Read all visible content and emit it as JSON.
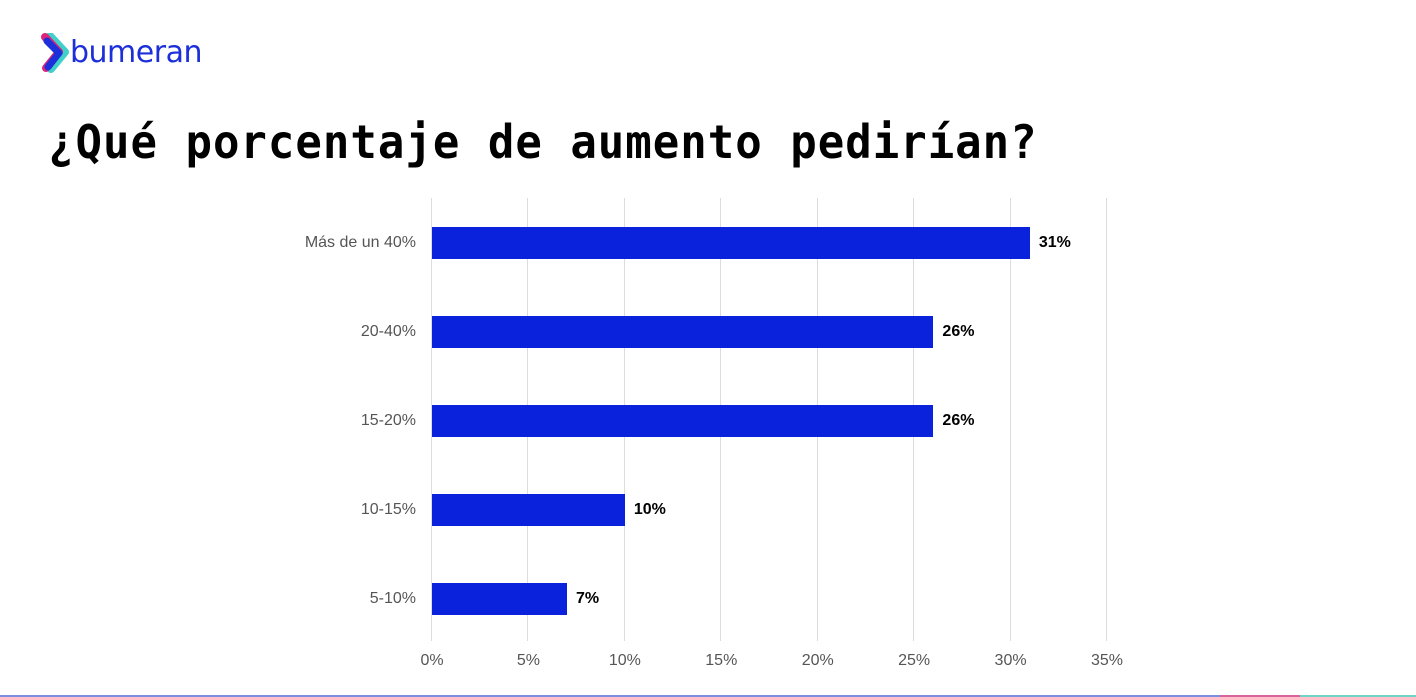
{
  "brand": {
    "name": "bumeran",
    "icon": "chevron-right-logo-icon",
    "colors": {
      "primary": "#1c2fd9",
      "accent_pink": "#e0237a",
      "accent_teal": "#3fd0c9"
    }
  },
  "title": "¿Qué porcentaje de aumento pedirían?",
  "chart_data": {
    "type": "bar",
    "orientation": "horizontal",
    "title": "¿Qué porcentaje de aumento pedirían?",
    "categories": [
      "Más de un 40%",
      "20-40%",
      "15-20%",
      "10-15%",
      "5-10%"
    ],
    "values": [
      31,
      26,
      26,
      10,
      7
    ],
    "value_labels": [
      "31%",
      "26%",
      "26%",
      "10%",
      "7%"
    ],
    "xlabel": "",
    "ylabel": "",
    "xlim": [
      0,
      35
    ],
    "x_ticks": [
      "0%",
      "5%",
      "10%",
      "15%",
      "20%",
      "25%",
      "30%",
      "35%"
    ],
    "grid": true,
    "legend": null,
    "bar_color": "#0a22dc"
  },
  "footer_bar_colors": [
    "#7b8ee0",
    "#d8629a",
    "#6fd3c5"
  ]
}
